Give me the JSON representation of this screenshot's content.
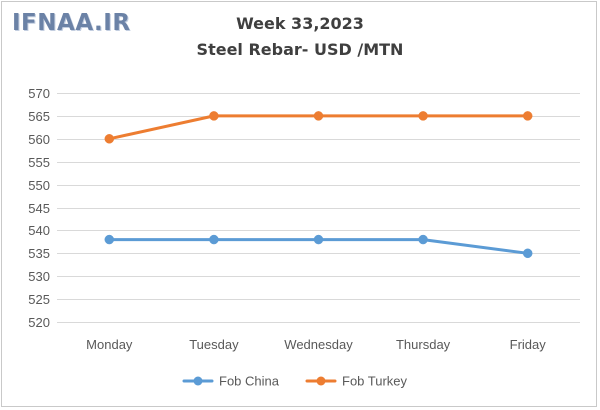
{
  "watermark": "IFNAA.IR",
  "chart_data": {
    "type": "line",
    "title": "Week 33,2023",
    "subtitle": "Steel Rebar- USD /MTN",
    "categories": [
      "Monday",
      "Tuesday",
      "Wednesday",
      "Thursday",
      "Friday"
    ],
    "series": [
      {
        "name": "Fob China",
        "color": "#5b9bd5",
        "values": [
          538,
          538,
          538,
          538,
          535
        ]
      },
      {
        "name": "Fob Turkey",
        "color": "#ed7d31",
        "values": [
          560,
          565,
          565,
          565,
          565
        ]
      }
    ],
    "yticks": [
      520,
      525,
      530,
      535,
      540,
      545,
      550,
      555,
      560,
      565,
      570
    ],
    "ylim": [
      520,
      570
    ],
    "grid": true,
    "legend": "bottom"
  }
}
